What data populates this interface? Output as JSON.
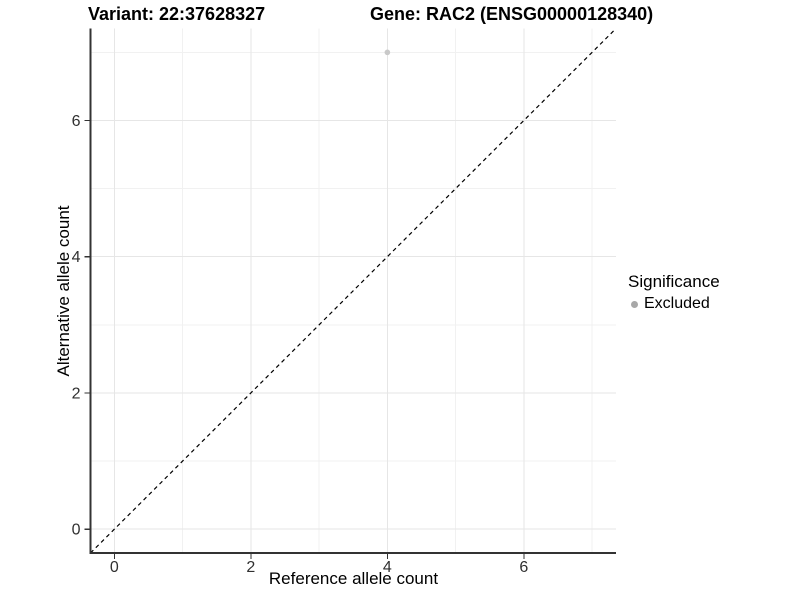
{
  "chart_data": {
    "type": "scatter",
    "titles": {
      "left": "Variant: 22:37628327",
      "right": "Gene: RAC2 (ENSG00000128340)"
    },
    "xlabel": "Reference allele count",
    "ylabel": "Alternative allele count",
    "xlim": [
      -0.35,
      7.35
    ],
    "ylim": [
      -0.35,
      7.35
    ],
    "xticks": [
      0,
      2,
      4,
      6
    ],
    "yticks": [
      0,
      2,
      4,
      6
    ],
    "xticks_minor": [
      1,
      3,
      5,
      7
    ],
    "yticks_minor": [
      1,
      3,
      5,
      7
    ],
    "grid": true,
    "points": [
      {
        "x": 4,
        "y": 7,
        "series": "Excluded"
      }
    ],
    "reference_line": {
      "slope": 1,
      "intercept": 0,
      "style": "dashed"
    },
    "legend": {
      "title": "Significance",
      "position": "right",
      "items": [
        {
          "label": "Excluded",
          "color": "#a8a8a8"
        }
      ]
    },
    "colors": {
      "background": "#ffffff",
      "point": "#c9c9c9",
      "grid_major": "#e6e6e6",
      "grid_minor": "#f1f1f1",
      "axis_line": "#333333",
      "tick_mark": "#333333",
      "tick_label": "#303030",
      "reference_line": "#000000"
    }
  }
}
